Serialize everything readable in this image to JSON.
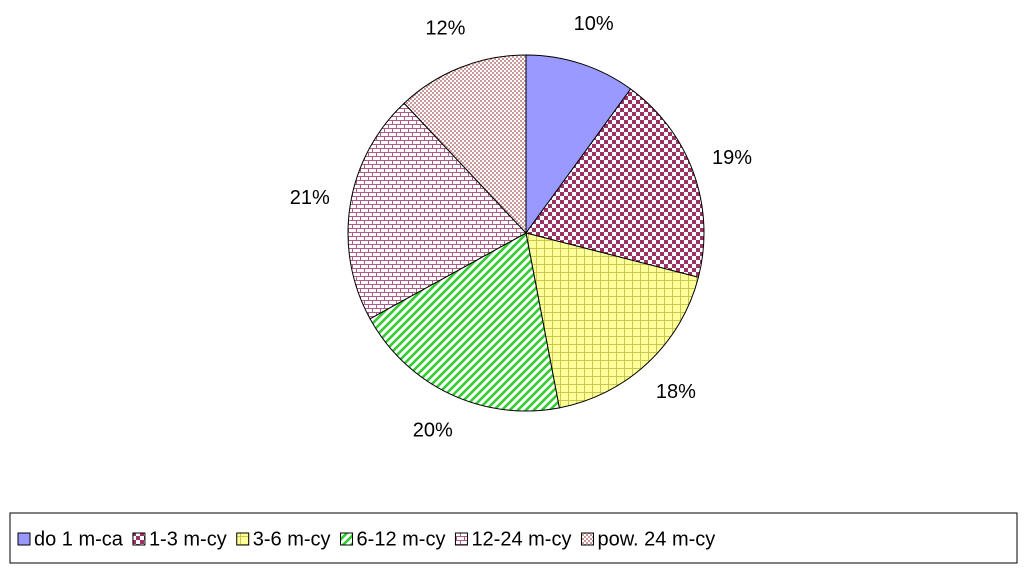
{
  "chart_data": {
    "type": "pie",
    "categories": [
      "do 1 m-ca",
      "1-3 m-cy",
      "3-6 m-cy",
      "6-12 m-cy",
      "12-24 m-cy",
      "pow. 24 m-cy"
    ],
    "values": [
      10,
      19,
      18,
      20,
      21,
      12
    ],
    "value_labels": [
      "10%",
      "19%",
      "18%",
      "20%",
      "21%",
      "12%"
    ],
    "colors": [
      "#9999ff",
      "#993366",
      "#ffff99",
      "#33cc33",
      "#993366",
      "#cc9999"
    ],
    "legend": "bottom"
  }
}
